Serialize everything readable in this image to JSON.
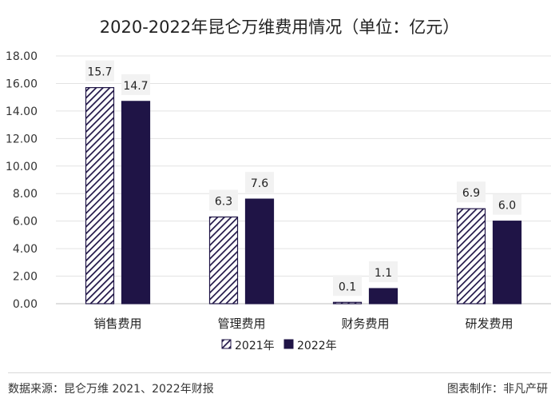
{
  "chart_data": {
    "type": "bar",
    "title": "2020-2022年昆仑万维费用情况（单位：亿元）",
    "categories": [
      "销售费用",
      "管理费用",
      "财务费用",
      "研发费用"
    ],
    "series": [
      {
        "name": "2021年",
        "values": [
          15.7,
          6.3,
          0.1,
          6.9
        ],
        "labels": [
          "15.7",
          "6.3",
          "0.1",
          "6.9"
        ],
        "pattern": "diagonal-hatch",
        "color": "#1f1446"
      },
      {
        "name": "2022年",
        "values": [
          14.7,
          7.6,
          1.1,
          6.0
        ],
        "labels": [
          "14.7",
          "7.6",
          "1.1",
          "6.0"
        ],
        "pattern": "solid",
        "color": "#1f1446"
      }
    ],
    "ylim": [
      0,
      18
    ],
    "yticks": [
      "0.00",
      "2.00",
      "4.00",
      "6.00",
      "8.00",
      "10.00",
      "12.00",
      "14.00",
      "16.00",
      "18.00"
    ],
    "ytick_values": [
      0,
      2,
      4,
      6,
      8,
      10,
      12,
      14,
      16,
      18
    ],
    "grid": true,
    "legend_position": "bottom-center",
    "xlabel": "",
    "ylabel": ""
  },
  "footer": {
    "source": "数据来源：昆仑万维 2021、2022年财报",
    "credit": "图表制作：非凡产研"
  }
}
